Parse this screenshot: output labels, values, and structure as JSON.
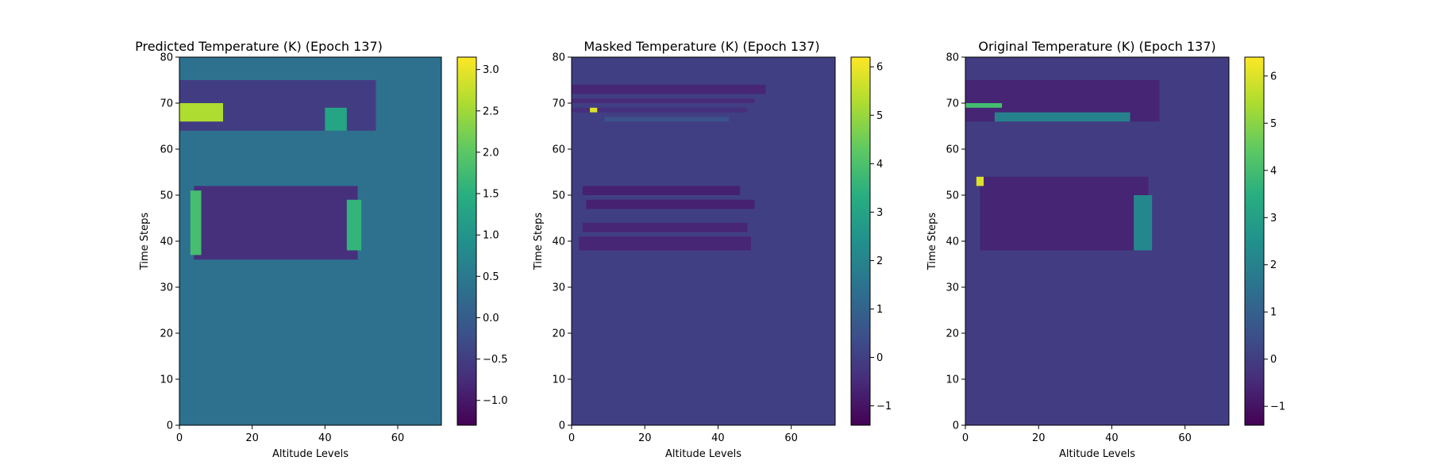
{
  "chart_data": [
    {
      "type": "heatmap",
      "title": "Predicted Temperature (K) (Epoch 137)",
      "xlabel": "Altitude Levels",
      "ylabel": "Time Steps",
      "xlim": [
        0,
        72
      ],
      "ylim": [
        0,
        80
      ],
      "xticks": [
        "0",
        "20",
        "40",
        "60"
      ],
      "yticks": [
        "0",
        "10",
        "20",
        "30",
        "40",
        "50",
        "60",
        "70",
        "80"
      ],
      "colorbar": {
        "vmin": -1.3,
        "vmax": 3.15,
        "ticks": [
          -1.0,
          -0.5,
          0.0,
          0.5,
          1.0,
          1.5,
          2.0,
          2.5,
          3.0
        ],
        "tick_labels": [
          "−1.0",
          "−0.5",
          "0.0",
          "0.5",
          "1.0",
          "1.5",
          "2.0",
          "2.5",
          "3.0"
        ]
      },
      "background_value": 0.35,
      "regions": [
        {
          "x": [
            0,
            54
          ],
          "y": [
            64,
            75
          ],
          "value": -0.5
        },
        {
          "x": [
            4,
            49
          ],
          "y": [
            36,
            52
          ],
          "value": -0.7
        },
        {
          "x": [
            0,
            12
          ],
          "y": [
            66,
            70
          ],
          "value": 2.6
        },
        {
          "x": [
            3,
            6
          ],
          "y": [
            37,
            51
          ],
          "value": 1.8
        },
        {
          "x": [
            46,
            50
          ],
          "y": [
            38,
            49
          ],
          "value": 1.6
        },
        {
          "x": [
            40,
            46
          ],
          "y": [
            64,
            69
          ],
          "value": 1.3
        }
      ]
    },
    {
      "type": "heatmap",
      "title": "Masked Temperature (K) (Epoch 137)",
      "xlabel": "Altitude Levels",
      "ylabel": "Time Steps",
      "xlim": [
        0,
        72
      ],
      "ylim": [
        0,
        80
      ],
      "xticks": [
        "0",
        "20",
        "40",
        "60"
      ],
      "yticks": [
        "0",
        "10",
        "20",
        "30",
        "40",
        "50",
        "60",
        "70",
        "80"
      ],
      "colorbar": {
        "vmin": -1.4,
        "vmax": 6.2,
        "ticks": [
          -1,
          0,
          1,
          2,
          3,
          4,
          5,
          6
        ],
        "tick_labels": [
          "−1",
          "0",
          "1",
          "2",
          "3",
          "4",
          "5",
          "6"
        ]
      },
      "background_value": 0.0,
      "regions": [
        {
          "x": [
            0,
            53
          ],
          "y": [
            72,
            74
          ],
          "value": -0.6
        },
        {
          "x": [
            0,
            50
          ],
          "y": [
            70,
            71
          ],
          "value": -0.5
        },
        {
          "x": [
            0,
            48
          ],
          "y": [
            68,
            69
          ],
          "value": -0.4
        },
        {
          "x": [
            9,
            43
          ],
          "y": [
            66,
            67
          ],
          "value": 0.5
        },
        {
          "x": [
            3,
            46
          ],
          "y": [
            50,
            52
          ],
          "value": -0.7
        },
        {
          "x": [
            4,
            50
          ],
          "y": [
            47,
            49
          ],
          "value": -0.7
        },
        {
          "x": [
            3,
            48
          ],
          "y": [
            42,
            44
          ],
          "value": -0.6
        },
        {
          "x": [
            2,
            49
          ],
          "y": [
            38,
            41
          ],
          "value": -0.6
        },
        {
          "x": [
            5,
            7
          ],
          "y": [
            68,
            69
          ],
          "value": 5.8
        }
      ]
    },
    {
      "type": "heatmap",
      "title": "Original Temperature (K) (Epoch 137)",
      "xlabel": "Altitude Levels",
      "ylabel": "Time Steps",
      "xlim": [
        0,
        72
      ],
      "ylim": [
        0,
        80
      ],
      "xticks": [
        "0",
        "20",
        "40",
        "60"
      ],
      "yticks": [
        "0",
        "10",
        "20",
        "30",
        "40",
        "50",
        "60",
        "70",
        "80"
      ],
      "colorbar": {
        "vmin": -1.4,
        "vmax": 6.4,
        "ticks": [
          -1,
          0,
          1,
          2,
          3,
          4,
          5,
          6
        ],
        "tick_labels": [
          "−1",
          "0",
          "1",
          "2",
          "3",
          "4",
          "5",
          "6"
        ]
      },
      "background_value": 0.0,
      "regions": [
        {
          "x": [
            0,
            53
          ],
          "y": [
            66,
            75
          ],
          "value": -0.6
        },
        {
          "x": [
            4,
            50
          ],
          "y": [
            38,
            54
          ],
          "value": -0.6
        },
        {
          "x": [
            3,
            5
          ],
          "y": [
            52,
            54
          ],
          "value": 6.0
        },
        {
          "x": [
            0,
            10
          ],
          "y": [
            69,
            70
          ],
          "value": 4.0
        },
        {
          "x": [
            46,
            51
          ],
          "y": [
            38,
            50
          ],
          "value": 2.2
        },
        {
          "x": [
            8,
            45
          ],
          "y": [
            66,
            68
          ],
          "value": 2.0
        }
      ]
    }
  ]
}
